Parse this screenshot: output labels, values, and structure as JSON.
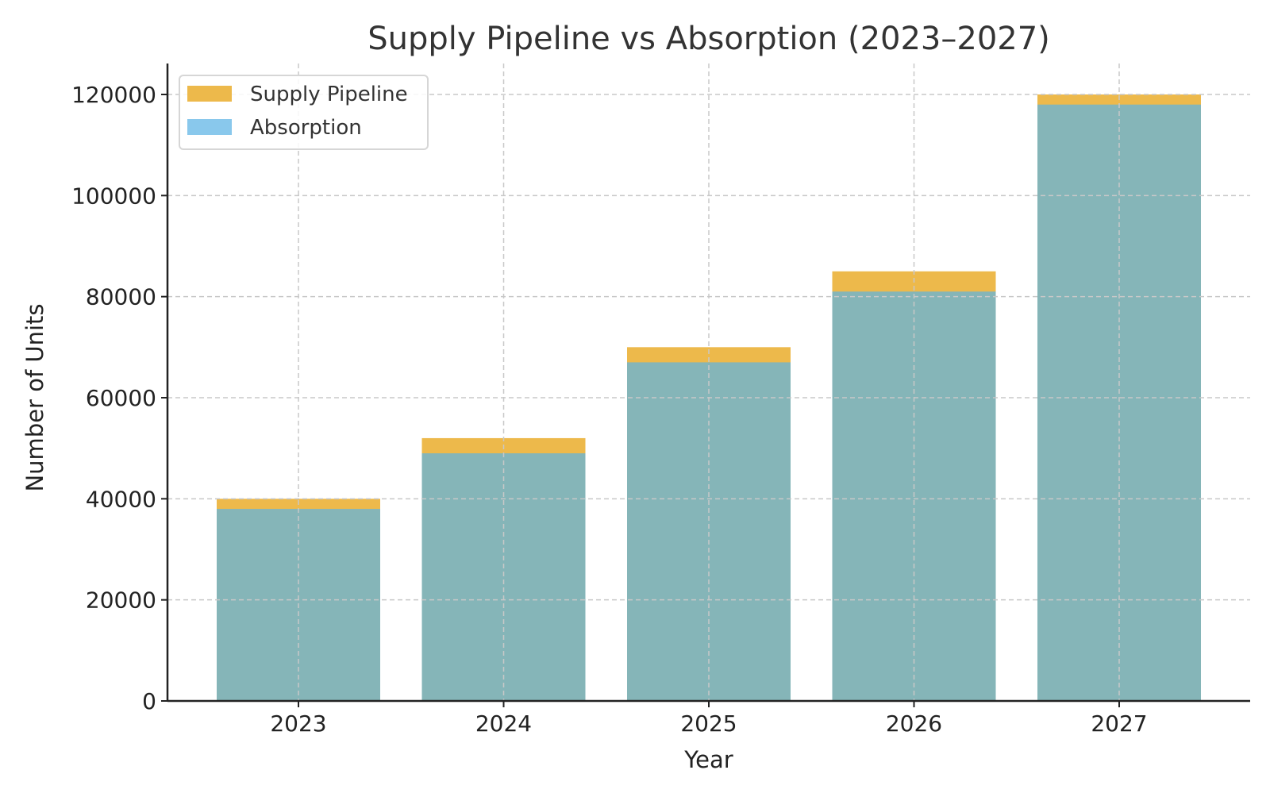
{
  "chart_data": {
    "type": "bar",
    "title": "Supply Pipeline vs Absorption (2023–2027)",
    "xlabel": "Year",
    "ylabel": "Number of Units",
    "categories": [
      "2023",
      "2024",
      "2025",
      "2026",
      "2027"
    ],
    "series": [
      {
        "name": "Supply Pipeline",
        "values": [
          40000,
          52000,
          70000,
          85000,
          120000
        ],
        "color": "#EDB94B"
      },
      {
        "name": "Absorption",
        "values": [
          38000,
          49000,
          67000,
          81000,
          118000
        ],
        "color": "#89C8EC",
        "overlap_color": "#85B5B8"
      }
    ],
    "ylim": [
      0,
      126000
    ],
    "yticks": [
      "0",
      "20000",
      "40000",
      "60000",
      "80000",
      "100000",
      "120000"
    ],
    "grid": true,
    "legend": "top-left",
    "bars_overlaid": true
  }
}
